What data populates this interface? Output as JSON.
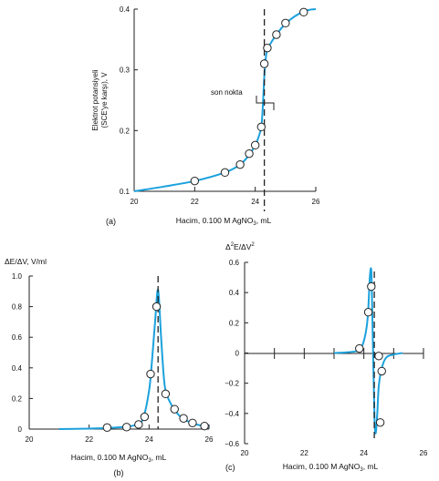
{
  "colors": {
    "curve": "#1ba1dc",
    "axis": "#222222",
    "marker_fill": "#ffffff"
  },
  "chart_data": [
    {
      "panel_label": "(a)",
      "type": "line",
      "xlabel": "Hacim, 0.100 M AgNO",
      "xlabel_sub": "3",
      "xlabel_suffix": ", mL",
      "ylabel_line1": "Elektrot potansiyeli",
      "ylabel_line2": "(SCE'ye karşı), V",
      "xlim": [
        20,
        26
      ],
      "ylim": [
        0.1,
        0.4
      ],
      "xticks": [
        20,
        22,
        24,
        26
      ],
      "xtick_labels": [
        "20",
        "22",
        "24",
        "26"
      ],
      "yticks": [
        0.1,
        0.2,
        0.3,
        0.4
      ],
      "ytick_labels": [
        "0.1",
        "0.2",
        "0.3",
        "0.4"
      ],
      "annotation": "son nokta",
      "endpoint_x": 24.3,
      "points": {
        "x": [
          22.0,
          23.0,
          23.5,
          23.8,
          24.0,
          24.2,
          24.3,
          24.4,
          24.7,
          25.0,
          25.6
        ],
        "y": [
          0.117,
          0.131,
          0.144,
          0.162,
          0.176,
          0.206,
          0.31,
          0.336,
          0.358,
          0.377,
          0.395
        ]
      },
      "curve": {
        "x": [
          20.0,
          21.0,
          22.0,
          23.0,
          23.5,
          23.8,
          24.0,
          24.1,
          24.2,
          24.25,
          24.3,
          24.35,
          24.4,
          24.5,
          24.7,
          25.0,
          25.3,
          25.6,
          25.8,
          26.0
        ],
        "y": [
          0.1,
          0.108,
          0.117,
          0.131,
          0.144,
          0.16,
          0.176,
          0.188,
          0.206,
          0.24,
          0.29,
          0.32,
          0.334,
          0.343,
          0.358,
          0.376,
          0.388,
          0.396,
          0.399,
          0.4
        ]
      }
    },
    {
      "panel_label": "(b)",
      "type": "line",
      "title": "ΔE/ΔV, V/ml",
      "xlabel": "Hacim, 0.100 M AgNO",
      "xlabel_sub": "3",
      "xlabel_suffix": ", mL",
      "xlim": [
        20,
        26
      ],
      "ylim": [
        0,
        1.0
      ],
      "xticks": [
        20,
        22,
        24,
        26
      ],
      "xtick_labels": [
        "20",
        "22",
        "24",
        "26"
      ],
      "yticks": [
        0,
        0.2,
        0.4,
        0.6,
        0.8,
        1.0
      ],
      "ytick_labels": [
        "0",
        "0.2",
        "0.4",
        "0.6",
        "0.8",
        "1.0"
      ],
      "endpoint_x": 24.3,
      "points": {
        "x": [
          22.6,
          23.25,
          23.65,
          23.85,
          24.05,
          24.25,
          24.55,
          24.85,
          25.15,
          25.45,
          25.85
        ],
        "y": [
          0.01,
          0.013,
          0.03,
          0.08,
          0.36,
          0.8,
          0.23,
          0.13,
          0.07,
          0.04,
          0.02
        ]
      },
      "curve": {
        "x": [
          21.0,
          22.0,
          22.6,
          23.2,
          23.6,
          23.8,
          24.0,
          24.1,
          24.2,
          24.3,
          24.4,
          24.5,
          24.6,
          24.8,
          25.0,
          25.2,
          25.5,
          25.8,
          26.0
        ],
        "y": [
          0.0,
          0.003,
          0.007,
          0.015,
          0.03,
          0.07,
          0.25,
          0.45,
          0.7,
          0.91,
          0.6,
          0.32,
          0.22,
          0.14,
          0.09,
          0.06,
          0.035,
          0.02,
          0.015
        ]
      }
    },
    {
      "panel_label": "(c)",
      "type": "line",
      "title": "Δ",
      "title_sup1": "2",
      "title_mid": "E/ΔV",
      "title_sup2": "2",
      "xlabel": "Hacim, 0.100 M AgNO",
      "xlabel_sub": "3",
      "xlabel_suffix": ", mL",
      "xlim": [
        20,
        26
      ],
      "ylim": [
        -0.6,
        0.6
      ],
      "xticks": [
        20,
        22,
        24,
        26
      ],
      "xtick_labels": [
        "20",
        "22",
        "24",
        "26"
      ],
      "yticks": [
        -0.6,
        -0.4,
        -0.2,
        0,
        0.2,
        0.4,
        0.6
      ],
      "ytick_labels": [
        "−0.6",
        "−0.4",
        "−0.2",
        "0",
        "0.2",
        "0.4",
        "0.6"
      ],
      "endpoint_x": 24.35,
      "points": {
        "x": [
          23.85,
          24.15,
          24.25,
          24.5,
          24.55,
          24.6
        ],
        "y": [
          0.03,
          0.27,
          0.44,
          -0.02,
          -0.46,
          -0.12
        ]
      },
      "curve": {
        "x": [
          23.0,
          23.7,
          23.9,
          24.0,
          24.1,
          24.15,
          24.2,
          24.25,
          24.28,
          24.32,
          24.36,
          24.4,
          24.45,
          24.5,
          24.6,
          24.75,
          25.0,
          25.3
        ],
        "y": [
          0.0,
          0.01,
          0.035,
          0.08,
          0.18,
          0.3,
          0.5,
          0.55,
          0.3,
          -0.1,
          -0.45,
          -0.53,
          -0.4,
          -0.22,
          -0.1,
          -0.03,
          -0.01,
          0.0
        ]
      }
    }
  ]
}
